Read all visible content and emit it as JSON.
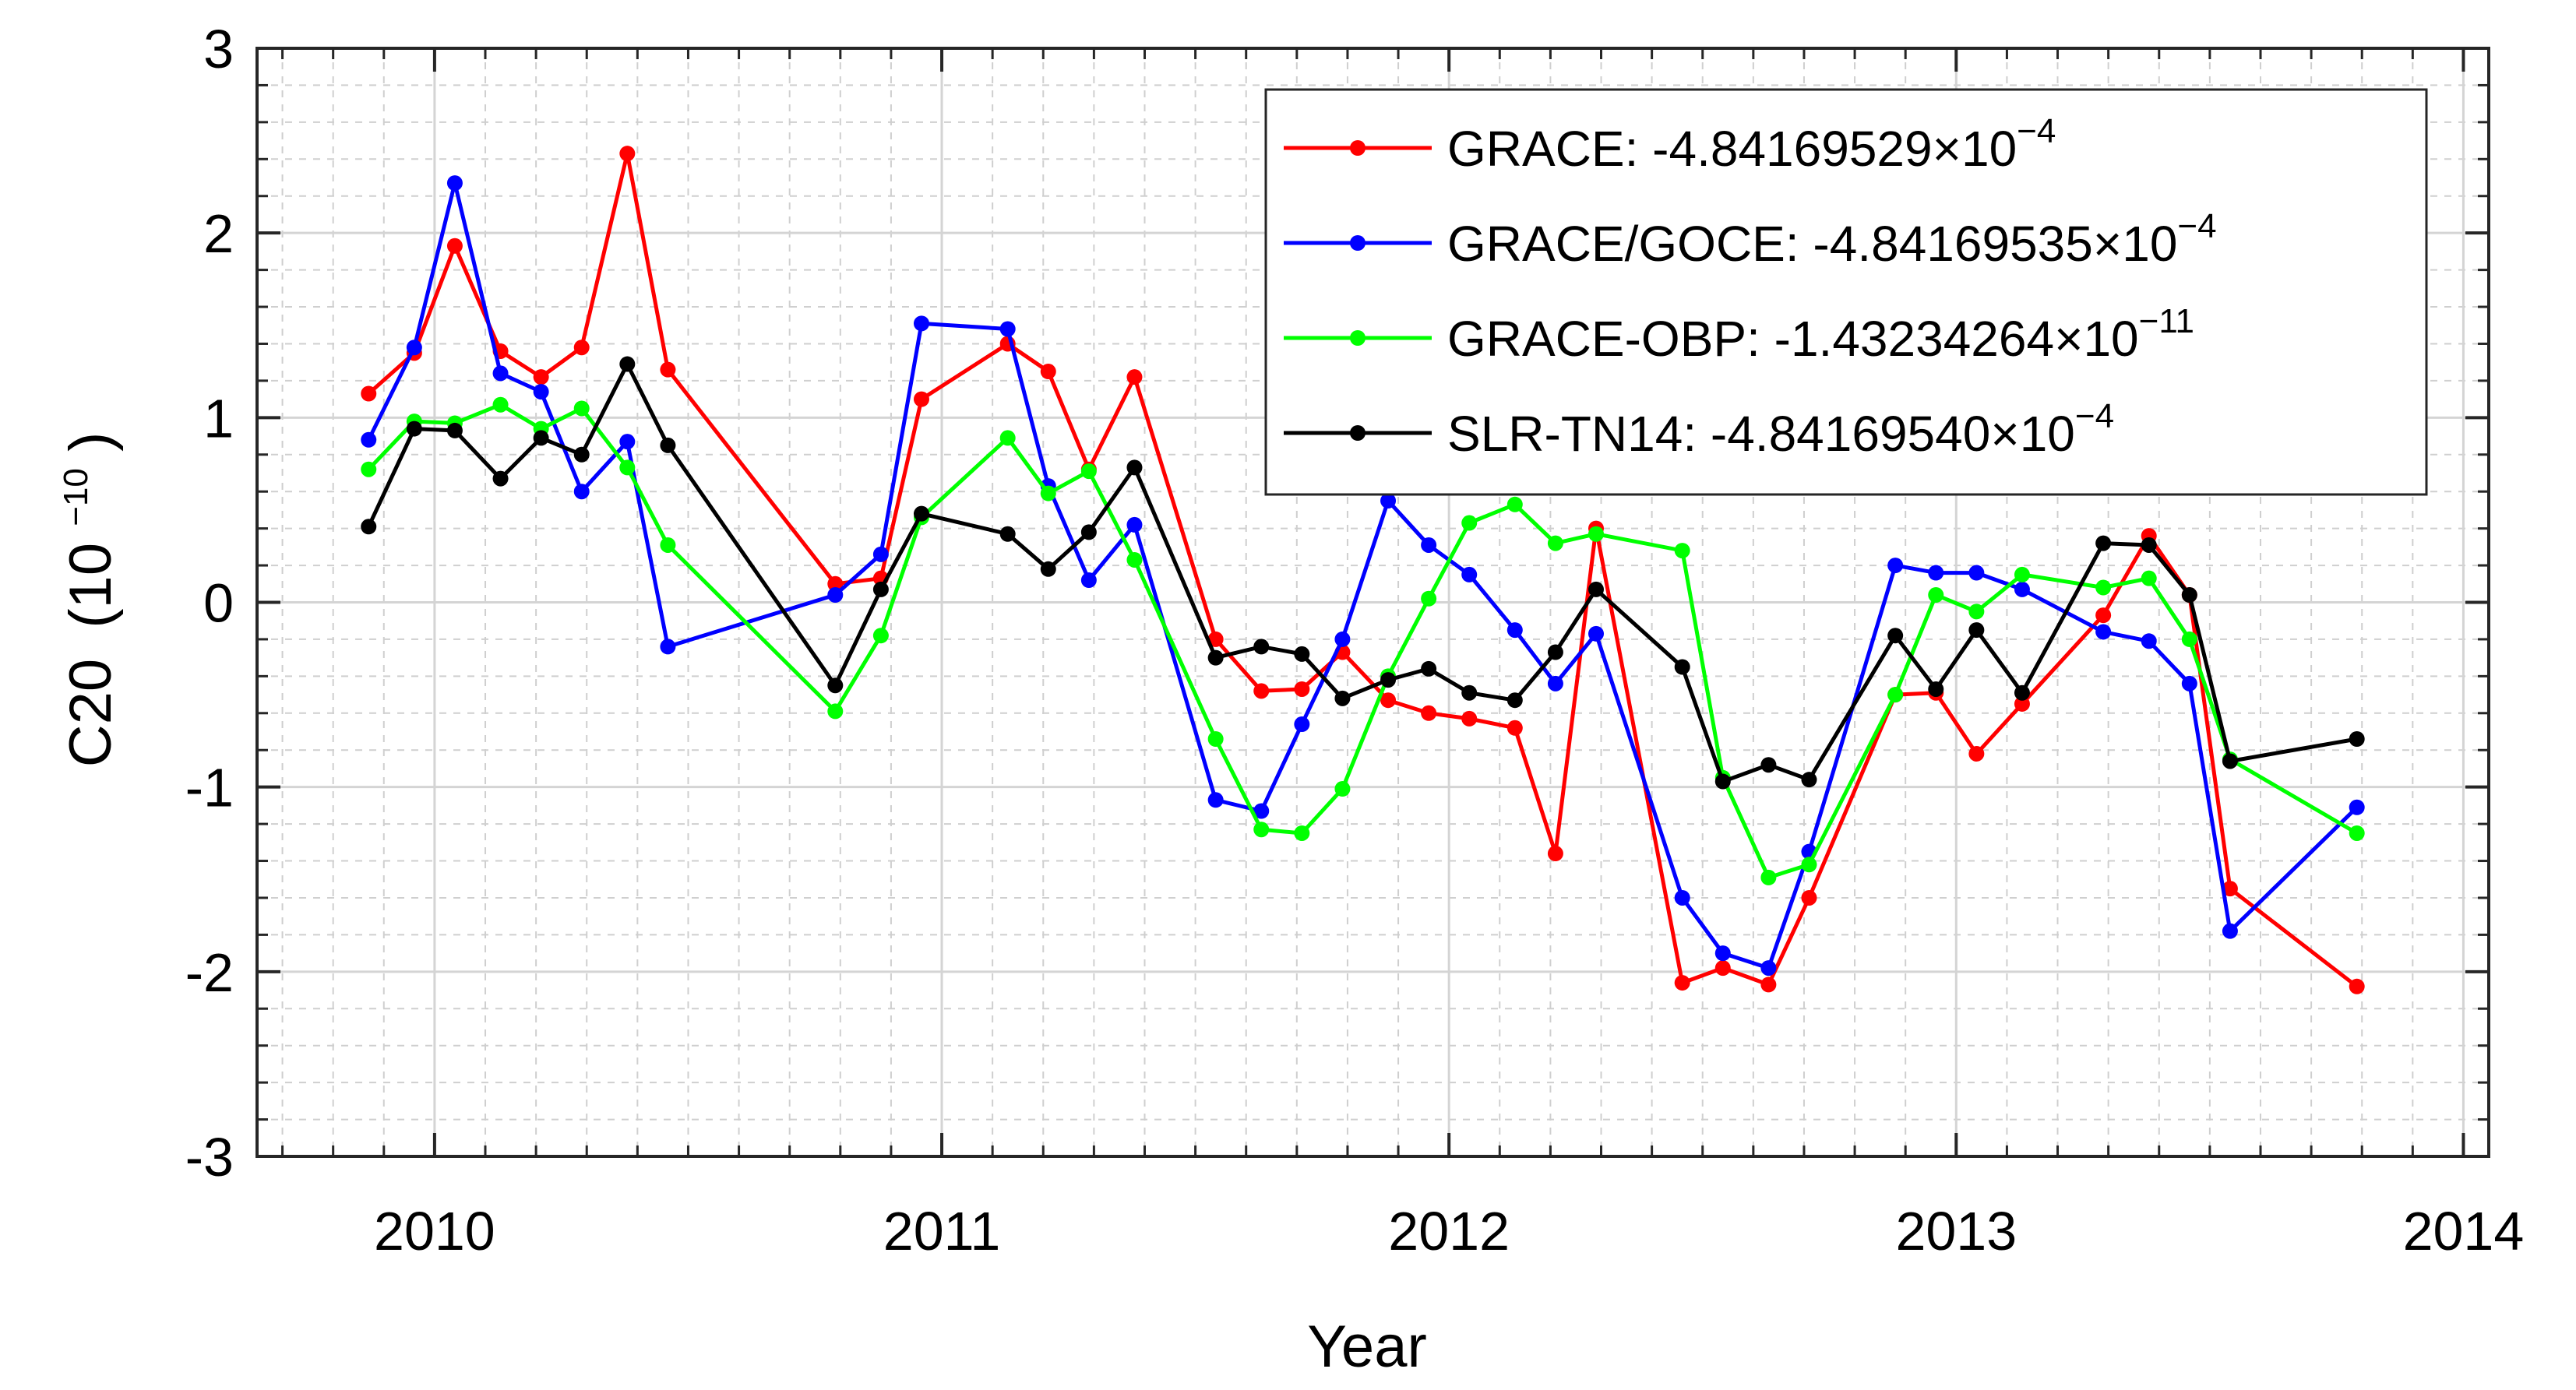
{
  "chart_data": {
    "type": "line",
    "xlabel": "Year",
    "ylabel": "C20",
    "ylabel_unit_base": "(10",
    "ylabel_unit_exp": "−10",
    "ylabel_unit_close": ")",
    "xlim": [
      2009.65,
      2014.05
    ],
    "ylim": [
      -3,
      3
    ],
    "xticks": [
      2010,
      2011,
      2012,
      2013,
      2014
    ],
    "xtick_labels": [
      "2010",
      "2011",
      "2012",
      "2013",
      "2014"
    ],
    "yticks": [
      3,
      2,
      1,
      0,
      -1,
      -2,
      -3
    ],
    "ytick_labels": [
      "3",
      "2",
      "1",
      "0",
      "-1",
      "-2",
      "-3"
    ],
    "grid": true,
    "minor_grid": true,
    "legend_position": "top-right",
    "series": [
      {
        "name": "GRACE",
        "legend_text": "GRACE: -4.84169529×10",
        "legend_exp": "−4",
        "color": "#ff0000",
        "x": [
          2009.87,
          2009.96,
          2010.04,
          2010.13,
          2010.21,
          2010.29,
          2010.38,
          2010.46,
          2010.79,
          2010.88,
          2010.96,
          2011.13,
          2011.21,
          2011.29,
          2011.38,
          2011.54,
          2011.63,
          2011.71,
          2011.79,
          2011.88,
          2011.96,
          2012.04,
          2012.13,
          2012.21,
          2012.29,
          2012.46,
          2012.54,
          2012.63,
          2012.71,
          2012.88,
          2012.96,
          2013.04,
          2013.13,
          2013.29,
          2013.38,
          2013.46,
          2013.54,
          2013.79
        ],
        "y": [
          1.13,
          1.35,
          1.93,
          1.36,
          1.22,
          1.38,
          2.43,
          1.26,
          0.1,
          0.13,
          1.1,
          1.4,
          1.25,
          0.72,
          1.22,
          -0.2,
          -0.48,
          -0.47,
          -0.27,
          -0.53,
          -0.6,
          -0.63,
          -0.68,
          -1.36,
          0.4,
          -2.06,
          -1.98,
          -2.07,
          -1.6,
          -0.5,
          -0.49,
          -0.82,
          -0.55,
          -0.07,
          0.36,
          0.04,
          -1.55,
          -2.08
        ]
      },
      {
        "name": "GRACE/GOCE",
        "legend_text": "GRACE/GOCE: -4.84169535×10",
        "legend_exp": "−4",
        "color": "#0000ff",
        "x": [
          2009.87,
          2009.96,
          2010.04,
          2010.13,
          2010.21,
          2010.29,
          2010.38,
          2010.46,
          2010.79,
          2010.88,
          2010.96,
          2011.13,
          2011.21,
          2011.29,
          2011.38,
          2011.54,
          2011.63,
          2011.71,
          2011.79,
          2011.88,
          2011.96,
          2012.04,
          2012.13,
          2012.21,
          2012.29,
          2012.46,
          2012.54,
          2012.63,
          2012.71,
          2012.88,
          2012.96,
          2013.04,
          2013.13,
          2013.29,
          2013.38,
          2013.46,
          2013.54,
          2013.79
        ],
        "y": [
          0.88,
          1.38,
          2.27,
          1.24,
          1.14,
          0.6,
          0.87,
          -0.24,
          0.04,
          0.26,
          1.51,
          1.48,
          0.63,
          0.12,
          0.42,
          -1.07,
          -1.13,
          -0.66,
          -0.2,
          0.55,
          0.31,
          0.15,
          -0.15,
          -0.44,
          -0.17,
          -1.6,
          -1.9,
          -1.98,
          -1.35,
          0.2,
          0.16,
          0.16,
          0.07,
          -0.16,
          -0.21,
          -0.44,
          -1.78,
          -1.11
        ]
      },
      {
        "name": "GRACE-OBP",
        "legend_text": "GRACE-OBP: -1.43234264×10",
        "legend_exp": "−11",
        "color": "#00ff00",
        "x": [
          2009.87,
          2009.96,
          2010.04,
          2010.13,
          2010.21,
          2010.29,
          2010.38,
          2010.46,
          2010.79,
          2010.88,
          2010.96,
          2011.13,
          2011.21,
          2011.29,
          2011.38,
          2011.54,
          2011.63,
          2011.71,
          2011.79,
          2011.88,
          2011.96,
          2012.04,
          2012.13,
          2012.21,
          2012.29,
          2012.46,
          2012.54,
          2012.63,
          2012.71,
          2012.88,
          2012.96,
          2013.04,
          2013.13,
          2013.29,
          2013.38,
          2013.46,
          2013.54,
          2013.79
        ],
        "y": [
          0.72,
          0.98,
          0.97,
          1.07,
          0.94,
          1.05,
          0.73,
          0.31,
          -0.59,
          -0.18,
          0.46,
          0.89,
          0.59,
          0.71,
          0.23,
          -0.74,
          -1.23,
          -1.25,
          -1.01,
          -0.4,
          0.02,
          0.43,
          0.53,
          0.32,
          0.37,
          0.28,
          -0.95,
          -1.49,
          -1.42,
          -0.5,
          0.04,
          -0.05,
          0.15,
          0.08,
          0.13,
          -0.2,
          -0.85,
          -1.25
        ]
      },
      {
        "name": "SLR-TN14",
        "legend_text": "SLR-TN14: -4.84169540×10",
        "legend_exp": "−4",
        "color": "#000000",
        "x": [
          2009.87,
          2009.96,
          2010.04,
          2010.13,
          2010.21,
          2010.29,
          2010.38,
          2010.46,
          2010.79,
          2010.88,
          2010.96,
          2011.13,
          2011.21,
          2011.29,
          2011.38,
          2011.54,
          2011.63,
          2011.71,
          2011.79,
          2011.88,
          2011.96,
          2012.04,
          2012.13,
          2012.21,
          2012.29,
          2012.46,
          2012.54,
          2012.63,
          2012.71,
          2012.88,
          2012.96,
          2013.04,
          2013.13,
          2013.29,
          2013.38,
          2013.46,
          2013.54,
          2013.79
        ],
        "y": [
          0.41,
          0.94,
          0.93,
          0.67,
          0.89,
          0.8,
          1.29,
          0.85,
          -0.45,
          0.07,
          0.48,
          0.37,
          0.18,
          0.38,
          0.73,
          -0.3,
          -0.24,
          -0.28,
          -0.52,
          -0.42,
          -0.36,
          -0.49,
          -0.53,
          -0.27,
          0.07,
          -0.35,
          -0.97,
          -0.88,
          -0.96,
          -0.18,
          -0.47,
          -0.15,
          -0.49,
          0.32,
          0.31,
          0.04,
          -0.86,
          -0.74
        ]
      }
    ]
  }
}
